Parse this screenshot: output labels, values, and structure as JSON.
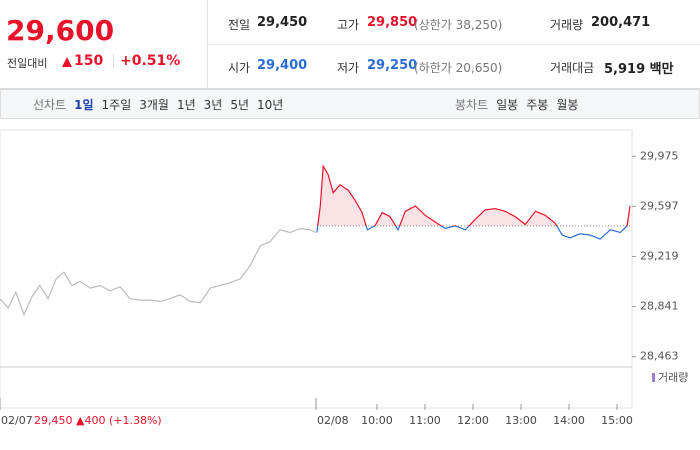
{
  "header": {
    "price": "29,600",
    "change_label": "전일대비",
    "change": "150",
    "change_rate": "+0.51%",
    "stats": [
      {
        "label": "전일",
        "value": "29,450"
      },
      {
        "label": "고가",
        "value": "29,850",
        "note": "(상한가 38,250)"
      },
      {
        "label": "거래량",
        "value": "200,471"
      },
      {
        "label": "시가",
        "value": "29,400"
      },
      {
        "label": "저가",
        "value": "29,250",
        "note": "(하한가 20,650)"
      },
      {
        "label": "거래대금",
        "value": "5,919 백만"
      }
    ]
  },
  "tabs": {
    "line_label": "선차트",
    "line_periods": [
      "1일",
      "1주일",
      "3개월",
      "1년",
      "3년",
      "5년",
      "10년"
    ],
    "candle_label": "봉차트",
    "candle_periods": [
      "일봉",
      "주봉",
      "월봉"
    ]
  },
  "chart_data": {
    "type": "line",
    "annotation": "29,450 ▲400 (+1.38%)",
    "volume_label": "거래량",
    "base_value": 29450,
    "up_color": "#e8132b",
    "down_color": "#2a6ed4",
    "xlim": [
      2.15,
      15.27
    ],
    "ylim": [
      28400,
      30060
    ],
    "xticks": [
      {
        "value": 2.15,
        "label": "02/07"
      },
      {
        "value": 8.73,
        "label": "02/08"
      },
      {
        "value": 10,
        "label": "10:00"
      },
      {
        "value": 11,
        "label": "11:00"
      },
      {
        "value": 12,
        "label": "12:00"
      },
      {
        "value": 13,
        "label": "13:00"
      },
      {
        "value": 14,
        "label": "14:00"
      },
      {
        "value": 15,
        "label": "15:00"
      }
    ],
    "yticks": [
      {
        "value": 29975,
        "label": "29,975"
      },
      {
        "value": 29597,
        "label": "29,597"
      },
      {
        "value": 29219,
        "label": "29,219"
      },
      {
        "value": 28841,
        "label": "28,841"
      },
      {
        "value": 28463,
        "label": "28,463"
      }
    ],
    "series": [
      {
        "color": "#bbbbbb",
        "x": [
          2.15,
          2.32,
          2.48,
          2.65,
          2.82,
          2.98,
          3.15,
          3.32,
          3.48,
          3.65,
          3.82,
          4.03,
          4.23,
          4.44,
          4.65,
          4.86,
          5.07,
          5.28,
          5.48,
          5.69,
          5.9,
          6.11,
          6.32,
          6.53,
          6.73,
          6.94,
          7.15,
          7.36,
          7.57,
          7.77,
          7.98,
          8.19,
          8.4,
          8.61,
          8.73
        ],
        "values": [
          28900,
          28830,
          28950,
          28780,
          28920,
          29000,
          28900,
          29050,
          29100,
          29000,
          29030,
          28980,
          29000,
          28960,
          28990,
          28900,
          28890,
          28890,
          28880,
          28900,
          28930,
          28880,
          28870,
          28980,
          29000,
          29020,
          29050,
          29150,
          29300,
          29330,
          29420,
          29400,
          29430,
          29420,
          29400
        ]
      },
      {
        "color": "gradient",
        "x": [
          8.75,
          8.82,
          8.88,
          8.98,
          9.09,
          9.23,
          9.4,
          9.55,
          9.69,
          9.8,
          9.96,
          10.11,
          10.27,
          10.44,
          10.59,
          10.8,
          11.0,
          11.21,
          11.42,
          11.63,
          11.84,
          12.05,
          12.25,
          12.46,
          12.67,
          12.88,
          13.09,
          13.3,
          13.5,
          13.71,
          13.86,
          14.02,
          14.23,
          14.44,
          14.65,
          14.86,
          15.07,
          15.21,
          15.27
        ],
        "values": [
          29400,
          29600,
          29900,
          29840,
          29700,
          29760,
          29720,
          29640,
          29550,
          29420,
          29450,
          29550,
          29520,
          29420,
          29560,
          29600,
          29530,
          29480,
          29430,
          29450,
          29420,
          29500,
          29570,
          29580,
          29560,
          29520,
          29460,
          29560,
          29530,
          29470,
          29380,
          29360,
          29390,
          29380,
          29350,
          29420,
          29400,
          29450,
          29600
        ]
      }
    ]
  }
}
